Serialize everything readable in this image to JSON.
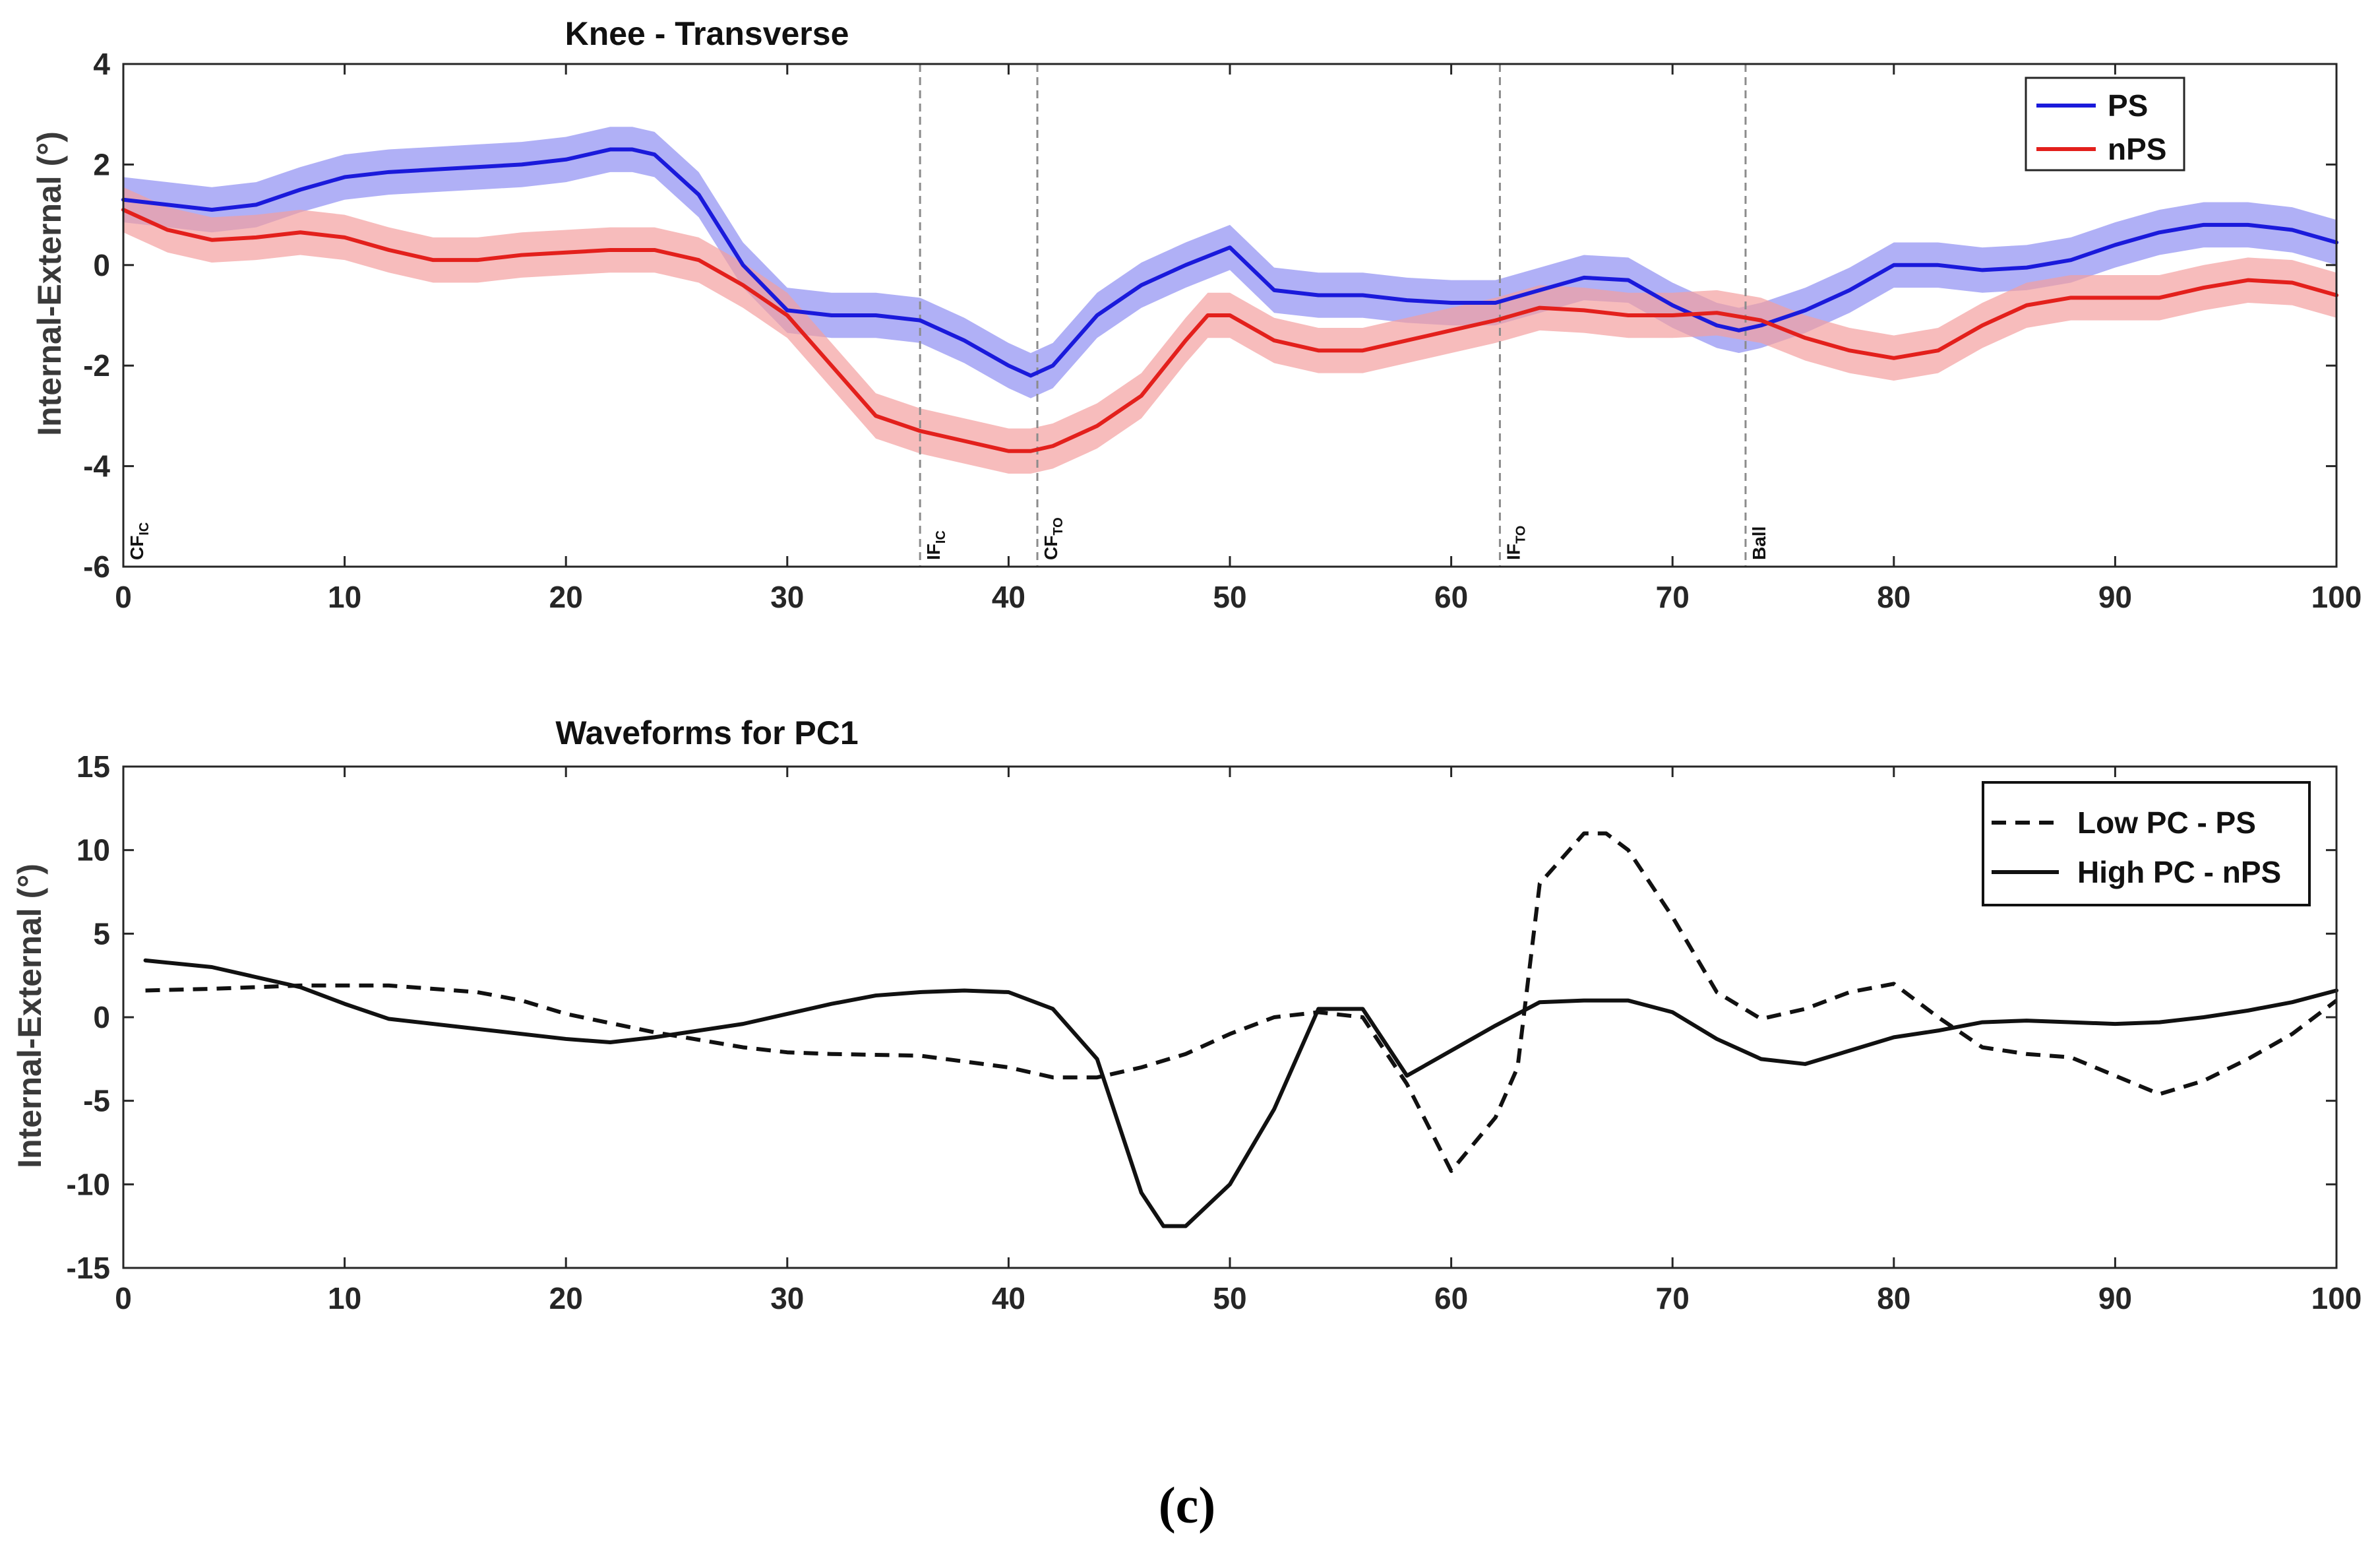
{
  "caption": "(c)",
  "chart_data": [
    {
      "type": "line",
      "title": "Knee - Transverse",
      "xlabel": "",
      "ylabel": "Internal-External (°)",
      "xlim": [
        0,
        100
      ],
      "ylim": [
        -6,
        4
      ],
      "xticks": [
        "0",
        "10",
        "20",
        "30",
        "40",
        "50",
        "60",
        "70",
        "80",
        "90",
        "100"
      ],
      "yticks": [
        "-6",
        "-4",
        "-2",
        "0",
        "2",
        "4"
      ],
      "xtick_values": [
        0,
        10,
        20,
        30,
        40,
        50,
        60,
        70,
        80,
        90,
        100
      ],
      "ytick_values": [
        -6,
        -4,
        -2,
        0,
        2,
        4
      ],
      "grid": false,
      "legend_position": "top-right",
      "events": [
        {
          "x": 0,
          "label": "CF",
          "sub": "IC"
        },
        {
          "x": 36,
          "label": "IF",
          "sub": "IC"
        },
        {
          "x": 41.3,
          "label": "CF",
          "sub": "TO"
        },
        {
          "x": 62.2,
          "label": "IF",
          "sub": "TO"
        },
        {
          "x": 73.3,
          "label": "Ball",
          "sub": ""
        }
      ],
      "series": [
        {
          "name": "PS",
          "color": "#1a1adb",
          "band_color": "#8f8ff2",
          "band": 0.45,
          "x": [
            0,
            2,
            4,
            6,
            8,
            10,
            12,
            14,
            16,
            18,
            20,
            22,
            23,
            24,
            26,
            28,
            30,
            32,
            34,
            36,
            38,
            40,
            41,
            42,
            44,
            46,
            48,
            50,
            52,
            54,
            56,
            58,
            60,
            62,
            64,
            66,
            68,
            70,
            72,
            73,
            74,
            76,
            78,
            80,
            82,
            84,
            86,
            88,
            90,
            92,
            94,
            96,
            98,
            100
          ],
          "values": [
            1.3,
            1.2,
            1.1,
            1.2,
            1.5,
            1.75,
            1.85,
            1.9,
            1.95,
            2.0,
            2.1,
            2.3,
            2.3,
            2.2,
            1.4,
            0.0,
            -0.9,
            -1.0,
            -1.0,
            -1.1,
            -1.5,
            -2.0,
            -2.2,
            -2.0,
            -1.0,
            -0.4,
            0.0,
            0.35,
            -0.5,
            -0.6,
            -0.6,
            -0.7,
            -0.75,
            -0.75,
            -0.5,
            -0.25,
            -0.3,
            -0.8,
            -1.2,
            -1.3,
            -1.2,
            -0.9,
            -0.5,
            0.0,
            0.0,
            -0.1,
            -0.05,
            0.1,
            0.4,
            0.65,
            0.8,
            0.8,
            0.7,
            0.45
          ]
        },
        {
          "name": "nPS",
          "color": "#e3201c",
          "band_color": "#f3a0a0",
          "band": 0.45,
          "x": [
            0,
            2,
            4,
            6,
            8,
            10,
            12,
            14,
            16,
            18,
            20,
            22,
            24,
            26,
            28,
            30,
            32,
            34,
            36,
            38,
            40,
            41,
            42,
            44,
            46,
            48,
            49,
            50,
            52,
            54,
            56,
            58,
            60,
            62,
            64,
            66,
            68,
            70,
            72,
            74,
            76,
            78,
            80,
            82,
            84,
            86,
            88,
            90,
            92,
            94,
            96,
            98,
            100
          ],
          "values": [
            1.1,
            0.7,
            0.5,
            0.55,
            0.65,
            0.55,
            0.3,
            0.1,
            0.1,
            0.2,
            0.25,
            0.3,
            0.3,
            0.1,
            -0.4,
            -1.0,
            -2.0,
            -3.0,
            -3.3,
            -3.5,
            -3.7,
            -3.7,
            -3.6,
            -3.2,
            -2.6,
            -1.5,
            -1.0,
            -1.0,
            -1.5,
            -1.7,
            -1.7,
            -1.5,
            -1.3,
            -1.1,
            -0.85,
            -0.9,
            -1.0,
            -1.0,
            -0.95,
            -1.1,
            -1.45,
            -1.7,
            -1.85,
            -1.7,
            -1.2,
            -0.8,
            -0.65,
            -0.65,
            -0.65,
            -0.45,
            -0.3,
            -0.35,
            -0.6
          ]
        }
      ]
    },
    {
      "type": "line",
      "title": "Waveforms for PC1",
      "xlabel": "",
      "ylabel": "Internal-External (°)",
      "xlim": [
        0,
        100
      ],
      "ylim": [
        -15,
        15
      ],
      "xticks": [
        "0",
        "10",
        "20",
        "30",
        "40",
        "50",
        "60",
        "70",
        "80",
        "90",
        "100"
      ],
      "yticks": [
        "-15",
        "-10",
        "-5",
        "0",
        "5",
        "10",
        "15"
      ],
      "xtick_values": [
        0,
        10,
        20,
        30,
        40,
        50,
        60,
        70,
        80,
        90,
        100
      ],
      "ytick_values": [
        -15,
        -10,
        -5,
        0,
        5,
        10,
        15
      ],
      "grid": false,
      "legend_position": "top-right",
      "series": [
        {
          "name": "Low PC - PS",
          "color": "#111111",
          "dash": "22 14",
          "x": [
            1,
            4,
            8,
            12,
            16,
            18,
            20,
            24,
            28,
            30,
            32,
            36,
            40,
            42,
            44,
            46,
            48,
            50,
            52,
            54,
            56,
            58,
            60,
            62,
            63,
            64,
            66,
            67,
            68,
            70,
            72,
            74,
            76,
            78,
            80,
            82,
            84,
            86,
            88,
            90,
            92,
            94,
            96,
            98,
            100
          ],
          "values": [
            1.6,
            1.7,
            1.9,
            1.9,
            1.5,
            1.0,
            0.2,
            -0.9,
            -1.8,
            -2.1,
            -2.2,
            -2.3,
            -3.0,
            -3.6,
            -3.6,
            -3.0,
            -2.2,
            -1.0,
            0.0,
            0.3,
            0.0,
            -4.0,
            -9.2,
            -6.0,
            -3.0,
            8.0,
            11.0,
            11.0,
            10.0,
            6.0,
            1.5,
            -0.1,
            0.5,
            1.5,
            2.0,
            0.0,
            -1.8,
            -2.2,
            -2.4,
            -3.5,
            -4.6,
            -3.8,
            -2.5,
            -1.0,
            1.0
          ]
        },
        {
          "name": "High PC - nPS",
          "color": "#111111",
          "dash": "",
          "x": [
            1,
            4,
            8,
            10,
            12,
            16,
            20,
            22,
            24,
            28,
            30,
            32,
            34,
            36,
            38,
            40,
            42,
            44,
            46,
            47,
            48,
            50,
            52,
            54,
            56,
            58,
            60,
            62,
            64,
            66,
            68,
            70,
            72,
            74,
            76,
            78,
            80,
            82,
            84,
            86,
            88,
            90,
            92,
            94,
            96,
            98,
            100
          ],
          "values": [
            3.4,
            3.0,
            1.8,
            0.8,
            -0.1,
            -0.7,
            -1.3,
            -1.5,
            -1.2,
            -0.4,
            0.2,
            0.8,
            1.3,
            1.5,
            1.6,
            1.5,
            0.5,
            -2.5,
            -10.5,
            -12.5,
            -12.5,
            -10.0,
            -5.5,
            0.5,
            0.5,
            -3.5,
            -2.0,
            -0.5,
            0.9,
            1.0,
            1.0,
            0.3,
            -1.3,
            -2.5,
            -2.8,
            -2.0,
            -1.2,
            -0.8,
            -0.3,
            -0.2,
            -0.3,
            -0.4,
            -0.3,
            0.0,
            0.4,
            0.9,
            1.6
          ]
        }
      ]
    }
  ]
}
